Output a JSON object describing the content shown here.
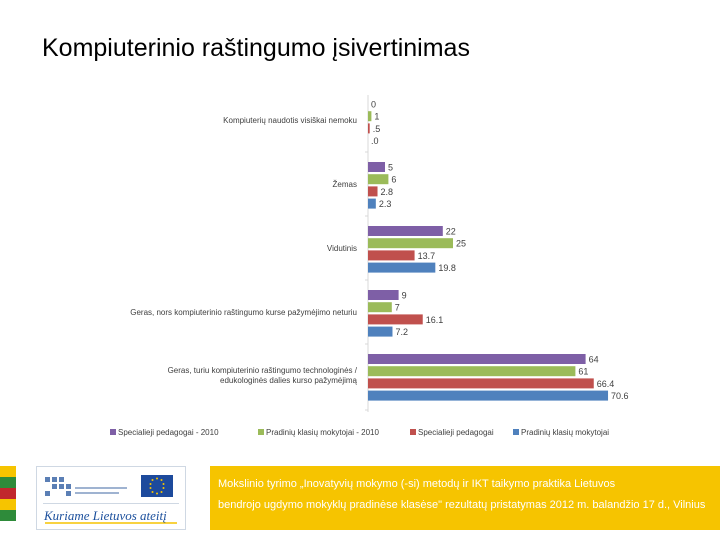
{
  "slide": {
    "title": "Kompiuterinio raštingumo įsivertinimas"
  },
  "chart_data": {
    "type": "bar",
    "orientation": "horizontal",
    "categories": [
      "Kompiuterių naudotis visiškai nemoku",
      "Žemas",
      "Vidutinis",
      "Geras, nors kompiuterinio raštingumo kurse pažymėjimo neturiu",
      "Geras, turiu kompiuterinio raštingumo technologinės / edukologinės dalies kurso pažymėjimą"
    ],
    "series": [
      {
        "name": "Specialieji pedagogai - 2010",
        "color": "#7e5fa6",
        "values": [
          0,
          5,
          22,
          9,
          64
        ],
        "labels": [
          "0",
          "5",
          "22",
          "9",
          "64"
        ]
      },
      {
        "name": "Pradinių klasių mokytojai - 2010",
        "color": "#9bbb59",
        "values": [
          1,
          6,
          25,
          7,
          61
        ],
        "labels": [
          "1",
          "6",
          "25",
          "7",
          "61"
        ]
      },
      {
        "name": "Specialieji pedagogai",
        "color": "#c0504d",
        "values": [
          0.5,
          2.8,
          13.7,
          16.1,
          66.4
        ],
        "labels": [
          ".5",
          "2.8",
          "13.7",
          "16.1",
          "66.4"
        ]
      },
      {
        "name": "Pradinių klasių mokytojai",
        "color": "#4f81bd",
        "values": [
          0,
          2.3,
          19.8,
          7.2,
          70.6
        ],
        "labels": [
          ".0",
          "2.3",
          "19.8",
          "7.2",
          "70.6"
        ]
      }
    ],
    "xlim": [
      0,
      80
    ],
    "legend_position": "bottom",
    "grid": false
  },
  "footer": {
    "logo_slogan": "Kuriame Lietuvos ateitį",
    "line1": "Mokslinio tyrimo „Inovatyvių mokymo (-si) metodų ir IKT taikymo praktika Lietuvos",
    "line2": "bendrojo ugdymo mokyklų pradinėse klasėse\" rezultatų pristatymas  2012 m. balandžio 17 d., Vilnius"
  },
  "colors": {
    "flag_yellow": "#f6c400",
    "flag_green": "#2e8b3a",
    "flag_red": "#c1272d",
    "footer_band": "#f6c400",
    "eu_blue": "#1d4a9c"
  }
}
